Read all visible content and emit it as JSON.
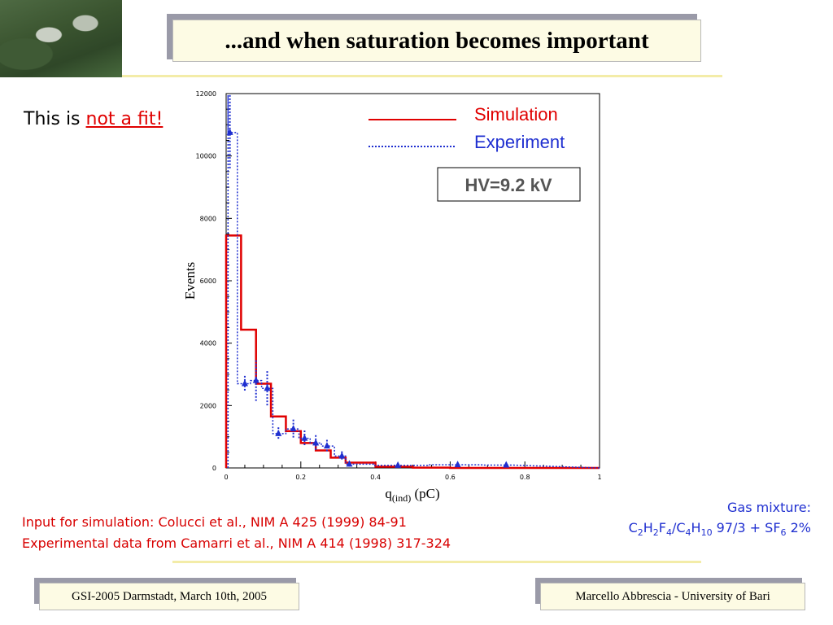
{
  "title": "...and when saturation becomes important",
  "note": {
    "prefix": "This is ",
    "emphasis": "not a fit!"
  },
  "references": [
    "Input for simulation: Colucci et al., NIM A 425 (1999) 84-91",
    "Experimental data from Camarri et al., NIM A 414 (1998) 317-324"
  ],
  "gas": {
    "label": "Gas mixture:",
    "mixture_suffix": " 97/3 + SF",
    "sf6_sub": "6",
    "percent": " 2%"
  },
  "footer": {
    "left": "GSI-2005 Darmstadt, March 10th, 2005",
    "right": "Marcello Abbrescia - University of Bari"
  },
  "colors": {
    "simulation": "#e00000",
    "experiment": "#1f2fd0",
    "title_bg": "#fdfbe4",
    "accent_text_red": "#e00000"
  },
  "chart_data": {
    "type": "line",
    "title": "",
    "xlabel": "q(ind) (pC)",
    "xlabel_main": "q",
    "xlabel_sub": "(ind)",
    "xlabel_unit": " (pC)",
    "ylabel": "Events",
    "xlim": [
      0,
      1.0
    ],
    "ylim": [
      0,
      12000
    ],
    "xticks": [
      0,
      0.2,
      0.4,
      0.6,
      0.8,
      1
    ],
    "xtick_labels": [
      "0",
      "0.2",
      "0.4",
      "0.6",
      "0.8",
      "1"
    ],
    "yticks": [
      0,
      2000,
      4000,
      6000,
      8000,
      10000,
      12000
    ],
    "ytick_labels": [
      "0",
      "2000",
      "4000",
      "6000",
      "8000",
      "10000",
      "12000"
    ],
    "legend": [
      "Simulation",
      "Experiment"
    ],
    "legend_position": "top-right",
    "annotation": "HV=9.2 kV",
    "series": [
      {
        "name": "Simulation",
        "style": "solid-step",
        "bin_edges": [
          0,
          0.04,
          0.08,
          0.12,
          0.16,
          0.2,
          0.24,
          0.28,
          0.32,
          0.4,
          0.5,
          0.6,
          1.0
        ],
        "values": [
          7450,
          4430,
          2700,
          1650,
          1180,
          800,
          560,
          330,
          170,
          40,
          10,
          0
        ]
      },
      {
        "name": "Experiment",
        "style": "dotted-step-with-points",
        "x": [
          0.01,
          0.05,
          0.08,
          0.11,
          0.14,
          0.18,
          0.21,
          0.24,
          0.27,
          0.31,
          0.33,
          0.46,
          0.62,
          0.75
        ],
        "values": [
          10750,
          2700,
          2800,
          2550,
          1100,
          1250,
          950,
          800,
          700,
          380,
          120,
          80,
          100,
          90
        ],
        "errors": [
          1200,
          250,
          650,
          550,
          200,
          300,
          250,
          250,
          200,
          150,
          80,
          60,
          70,
          80
        ]
      }
    ]
  }
}
